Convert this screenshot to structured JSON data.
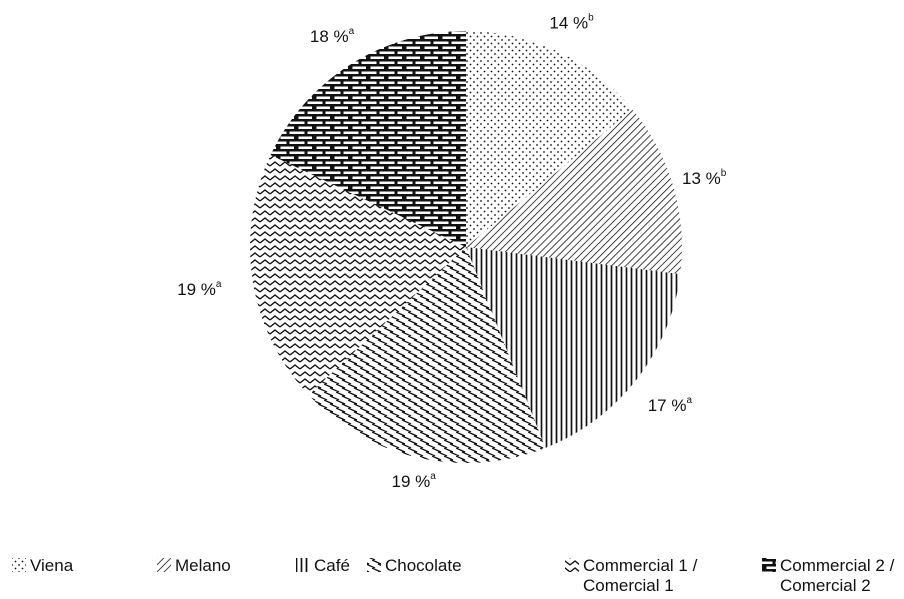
{
  "chart_data": {
    "type": "pie",
    "title": "",
    "slices": [
      {
        "label": "Viena",
        "percent_label": "14 %",
        "superscript": "b",
        "value": 14,
        "pattern": "dots"
      },
      {
        "label": "Melano",
        "percent_label": "13 %",
        "superscript": "b",
        "value": 13,
        "pattern": "diagonal-lines"
      },
      {
        "label": "Café",
        "percent_label": "17 %",
        "superscript": "a",
        "value": 17,
        "pattern": "vertical-lines"
      },
      {
        "label": "Chocolate",
        "percent_label": "19 %",
        "superscript": "a",
        "value": 19,
        "pattern": "small-diagonal-dashes"
      },
      {
        "label": "Commercial 1 /",
        "label_line2": "Comercial 1",
        "percent_label": "19 %",
        "superscript": "a",
        "value": 19,
        "pattern": "zigzag"
      },
      {
        "label": "Commercial 2 /",
        "label_line2": "Comercial 2",
        "percent_label": "18 %",
        "superscript": "a",
        "value": 18,
        "pattern": "brick"
      }
    ],
    "start_angle_deg": 0,
    "direction": "clockwise",
    "legend_position": "bottom",
    "colors": {
      "ink": "#111111",
      "background": "#ffffff"
    }
  }
}
